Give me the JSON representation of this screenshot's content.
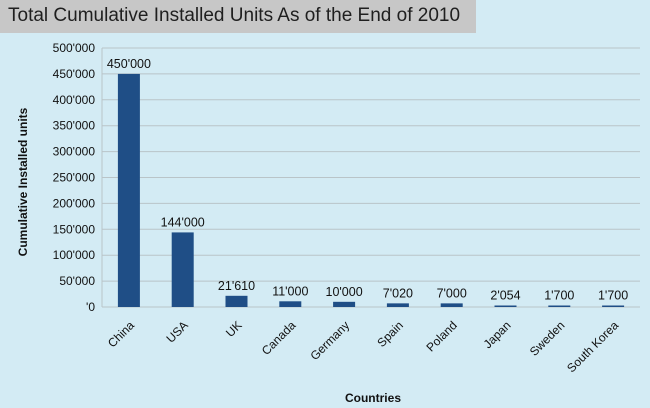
{
  "chart_data": {
    "type": "bar",
    "title": "Total Cumulative Installed Units As of the End of 2010",
    "xlabel": "Countries",
    "ylabel": "Cumulative Installed units",
    "categories": [
      "China",
      "USA",
      "UK",
      "Canada",
      "Germany",
      "Spain",
      "Poland",
      "Japan",
      "Sweden",
      "South Korea"
    ],
    "values": [
      450000,
      144000,
      21610,
      11000,
      10000,
      7020,
      7000,
      2054,
      1700,
      1700
    ],
    "data_labels": [
      "450'000",
      "144'000",
      "21'610",
      "11'000",
      "10'000",
      "7'020",
      "7'000",
      "2'054",
      "1'700",
      "1'700"
    ],
    "y_ticks": [
      0,
      50000,
      100000,
      150000,
      200000,
      250000,
      300000,
      350000,
      400000,
      450000,
      500000
    ],
    "y_tick_labels": [
      "'0",
      "50'000",
      "100'000",
      "150'000",
      "200'000",
      "250'000",
      "300'000",
      "350'000",
      "400'000",
      "450'000",
      "500'000"
    ],
    "ylim": [
      0,
      500000
    ],
    "grid": true,
    "colors": {
      "bar": "#1f4e86",
      "grid": "#b9c4c8",
      "background": "#d3ebf4",
      "title_band": "#c7c7c7"
    }
  }
}
